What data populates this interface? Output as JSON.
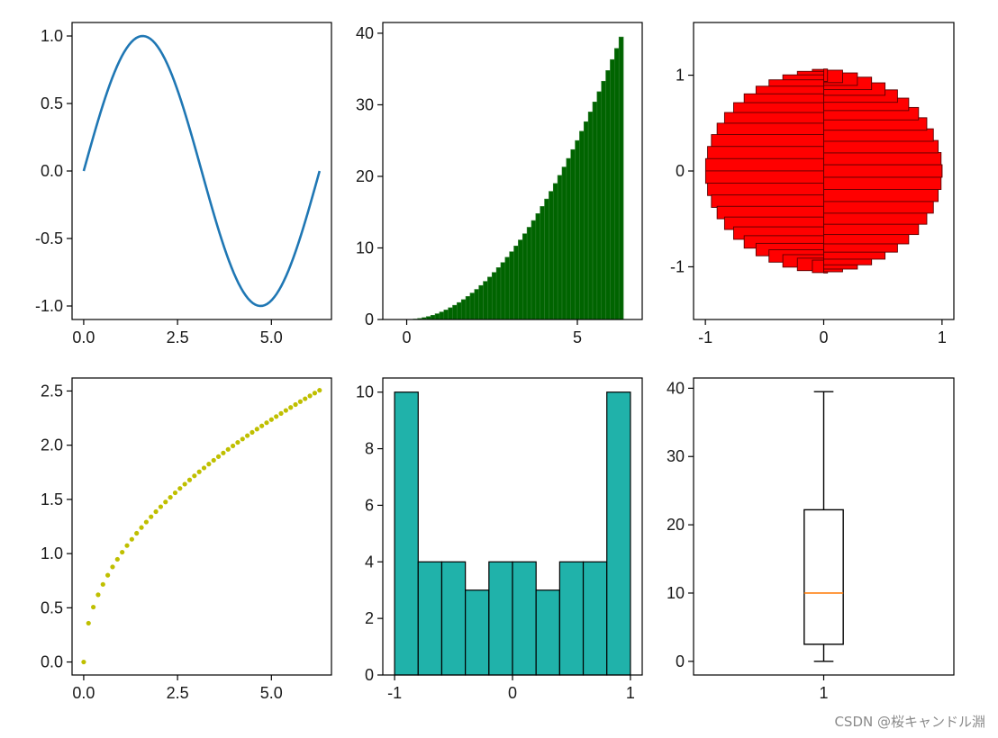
{
  "watermark": "CSDN @桜キャンドル淵",
  "colors": {
    "line": "#1f77b4",
    "cumbar": "#006400",
    "polar_bar": "#ff0000",
    "scatter": "#bfbf00",
    "hist": "#20b2aa",
    "median": "#ff7f0e",
    "axes": "#000000"
  },
  "chart_data": [
    {
      "type": "line",
      "function": "sin(x)",
      "x_range": [
        0,
        6.283
      ],
      "points": 100,
      "xlim": [
        -0.31,
        6.6
      ],
      "ylim": [
        -1.1,
        1.1
      ],
      "xticks": [
        0.0,
        2.5,
        5.0
      ],
      "xtick_labels": [
        "0.0",
        "2.5",
        "5.0"
      ],
      "yticks": [
        -1.0,
        -0.5,
        0.0,
        0.5,
        1.0
      ],
      "ytick_labels": [
        "-1.0",
        "-0.5",
        "0.0",
        "0.5",
        "1.0"
      ]
    },
    {
      "type": "bar",
      "description_values": "x = linspace(0, 2π, 50), heights = x^2",
      "x_range": [
        0,
        6.283
      ],
      "count": 50,
      "height_function": "x^2",
      "bar_width": 0.13,
      "xlim": [
        -0.7,
        6.9
      ],
      "ylim": [
        0,
        41.5
      ],
      "xticks": [
        0,
        5
      ],
      "xtick_labels": [
        "0",
        "5"
      ],
      "yticks": [
        0,
        10,
        20,
        30,
        40
      ],
      "ytick_labels": [
        "0",
        "10",
        "20",
        "30",
        "40"
      ]
    },
    {
      "type": "bar",
      "variant": "horizontal bars from 0 to x (x = cos θ), y = sin θ",
      "count": 50,
      "bar_height": 0.13,
      "xlim": [
        -1.1,
        1.1
      ],
      "ylim": [
        -1.55,
        1.55
      ],
      "xticks": [
        -1,
        0,
        1
      ],
      "xtick_labels": [
        "-1",
        "0",
        "1"
      ],
      "yticks": [
        -1,
        0,
        1
      ],
      "ytick_labels": [
        "-1",
        "0",
        "1"
      ]
    },
    {
      "type": "scatter",
      "function": "sqrt(x)",
      "x_range": [
        0,
        6.283
      ],
      "points": 50,
      "xlim": [
        -0.31,
        6.6
      ],
      "ylim": [
        -0.12,
        2.62
      ],
      "xticks": [
        0.0,
        2.5,
        5.0
      ],
      "xtick_labels": [
        "0.0",
        "2.5",
        "5.0"
      ],
      "yticks": [
        0.0,
        0.5,
        1.0,
        1.5,
        2.0,
        2.5
      ],
      "ytick_labels": [
        "0.0",
        "0.5",
        "1.0",
        "1.5",
        "2.0",
        "2.5"
      ]
    },
    {
      "type": "bar",
      "variant": "histogram",
      "bin_edges": [
        -1.0,
        -0.8,
        -0.6,
        -0.4,
        -0.2,
        0.0,
        0.2,
        0.4,
        0.6,
        0.8,
        1.0
      ],
      "values": [
        10,
        4,
        4,
        3,
        4,
        4,
        3,
        4,
        4,
        10
      ],
      "xlim": [
        -1.1,
        1.1
      ],
      "ylim": [
        0,
        10.5
      ],
      "xticks": [
        -1,
        0,
        1
      ],
      "xtick_labels": [
        "-1",
        "0",
        "1"
      ],
      "yticks": [
        0,
        2,
        4,
        6,
        8,
        10
      ],
      "ytick_labels": [
        "0",
        "2",
        "4",
        "6",
        "8",
        "10"
      ]
    },
    {
      "type": "box",
      "position": 1,
      "min": 0,
      "q1": 2.5,
      "median": 10,
      "q3": 22.2,
      "max": 39.5,
      "xlim": [
        0.5,
        1.5
      ],
      "ylim": [
        -2.0,
        41.5
      ],
      "xticks": [
        1
      ],
      "xtick_labels": [
        "1"
      ],
      "yticks": [
        0,
        10,
        20,
        30,
        40
      ],
      "ytick_labels": [
        "0",
        "10",
        "20",
        "30",
        "40"
      ]
    }
  ]
}
